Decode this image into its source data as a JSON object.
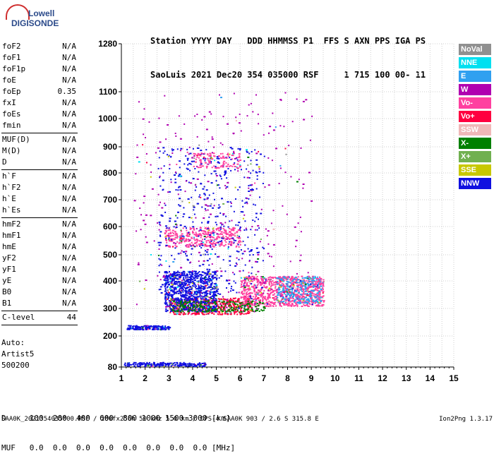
{
  "logo": {
    "line1": "Lowell",
    "line2": "DIGISONDE"
  },
  "header": {
    "labels": "Station YYYY DAY   DDD HHMMSS P1  FFS S AXN PPS IGA PS",
    "values": "SaoLuis 2021 Dec20 354 035000 RSF     1 715 100 00- 11"
  },
  "params": {
    "group1": [
      {
        "name": "foF2",
        "value": "N/A"
      },
      {
        "name": "foF1",
        "value": "N/A"
      },
      {
        "name": "foF1p",
        "value": "N/A"
      },
      {
        "name": "foE",
        "value": "N/A"
      },
      {
        "name": "foEp",
        "value": "0.35"
      },
      {
        "name": "fxI",
        "value": "N/A"
      },
      {
        "name": "foEs",
        "value": "N/A"
      },
      {
        "name": "fmin",
        "value": "N/A"
      }
    ],
    "group2": [
      {
        "name": "MUF(D)",
        "value": "N/A"
      },
      {
        "name": "M(D)",
        "value": "N/A"
      },
      {
        "name": "D",
        "value": "N/A"
      }
    ],
    "group3": [
      {
        "name": "h`F",
        "value": "N/A"
      },
      {
        "name": "h`F2",
        "value": "N/A"
      },
      {
        "name": "h`E",
        "value": "N/A"
      },
      {
        "name": "h`Es",
        "value": "N/A"
      }
    ],
    "group4": [
      {
        "name": "hmF2",
        "value": "N/A"
      },
      {
        "name": "hmF1",
        "value": "N/A"
      },
      {
        "name": "hmE",
        "value": "N/A"
      },
      {
        "name": "yF2",
        "value": "N/A"
      },
      {
        "name": "yF1",
        "value": "N/A"
      },
      {
        "name": "yE",
        "value": "N/A"
      },
      {
        "name": "B0",
        "value": "N/A"
      },
      {
        "name": "B1",
        "value": "N/A"
      }
    ],
    "clevel": {
      "name": "C-level",
      "value": "44"
    }
  },
  "auto": {
    "line1": "Auto:",
    "line2": "Artist5",
    "line3": "500200"
  },
  "legend": [
    {
      "label": "NoVal",
      "color": "#909090"
    },
    {
      "label": "NNE",
      "color": "#00e0f0"
    },
    {
      "label": "E",
      "color": "#30a0f0"
    },
    {
      "label": "W",
      "color": "#b000b0"
    },
    {
      "label": "Vo-",
      "color": "#ff40a0"
    },
    {
      "label": "Vo+",
      "color": "#ff0040"
    },
    {
      "label": "SSW",
      "color": "#f0b8b8"
    },
    {
      "label": "X-",
      "color": "#008000"
    },
    {
      "label": "X+",
      "color": "#70b050"
    },
    {
      "label": "SSE",
      "color": "#c8c800"
    },
    {
      "label": "NNW",
      "color": "#1010e0"
    }
  ],
  "bottom": {
    "row1": "D     100  200  400  600  800 1000 1500 3000 [km]",
    "row2": "MUF   0.0  0.0  0.0  0.0  0.0  0.0  0.0  0.0 [MHz]"
  },
  "footer": {
    "left": "SAA0K_2021354035000.RSF / 280fx256h 50 kHz 5.0 km / DPS-4 SAA0K 903 / 2.6 S 315.8 E",
    "right": "Ion2Png 1.3.17"
  },
  "chart_data": {
    "type": "scatter",
    "x_ticks": [
      "1",
      "2",
      "3",
      "4",
      "5",
      "6",
      "7",
      "8",
      "9",
      "10",
      "11",
      "12",
      "13",
      "14",
      "15"
    ],
    "y_ticks": [
      "80",
      "200",
      "300",
      "400",
      "500",
      "600",
      "700",
      "800",
      "900",
      "1000",
      "1100",
      "1280"
    ],
    "xlim": [
      1,
      15
    ],
    "ylim": [
      80,
      1280
    ],
    "xscale": "linear",
    "yscale": "ionogram (compressed upper heights)",
    "grid": true,
    "legend_position": "right",
    "clusters": [
      {
        "name": "O-trace F region",
        "x": [
          3.0,
          6.5
        ],
        "y": [
          280,
          340
        ],
        "color": "#ff0040",
        "count": 500
      },
      {
        "name": "Spread F echoes",
        "x": [
          6.0,
          9.5
        ],
        "y": [
          310,
          420
        ],
        "color": "#ff40a0",
        "count": 900
      },
      {
        "name": "Spread F east",
        "x": [
          7.5,
          9.4
        ],
        "y": [
          320,
          420
        ],
        "color": "#30a0f0",
        "count": 250
      },
      {
        "name": "Dense F blob",
        "x": [
          2.8,
          5.0
        ],
        "y": [
          290,
          440
        ],
        "color": "#1010e0",
        "count": 900
      },
      {
        "name": "Second hop",
        "x": [
          2.8,
          6.0
        ],
        "y": [
          530,
          600
        ],
        "color": "#ff40a0",
        "count": 350
      },
      {
        "name": "Tall columns",
        "x": [
          2.5,
          7.0
        ],
        "y": [
          350,
          900
        ],
        "color": "#1010e0",
        "count": 500
      },
      {
        "name": "Low layer 230",
        "x": [
          1.2,
          3.0
        ],
        "y": [
          225,
          240
        ],
        "color": "#1010e0",
        "count": 150
      },
      {
        "name": "Low layer 90",
        "x": [
          1.1,
          4.5
        ],
        "y": [
          85,
          100
        ],
        "color": "#1010e0",
        "count": 200
      },
      {
        "name": "X-trace",
        "x": [
          3.0,
          7.0
        ],
        "y": [
          290,
          330
        ],
        "color": "#008000",
        "count": 200
      },
      {
        "name": "High third hop",
        "x": [
          4.0,
          6.0
        ],
        "y": [
          820,
          880
        ],
        "color": "#ff40a0",
        "count": 120
      },
      {
        "name": "Scattered",
        "x": [
          1.5,
          9.0
        ],
        "y": [
          300,
          1100
        ],
        "color": "#b000b0",
        "count": 300
      }
    ]
  }
}
